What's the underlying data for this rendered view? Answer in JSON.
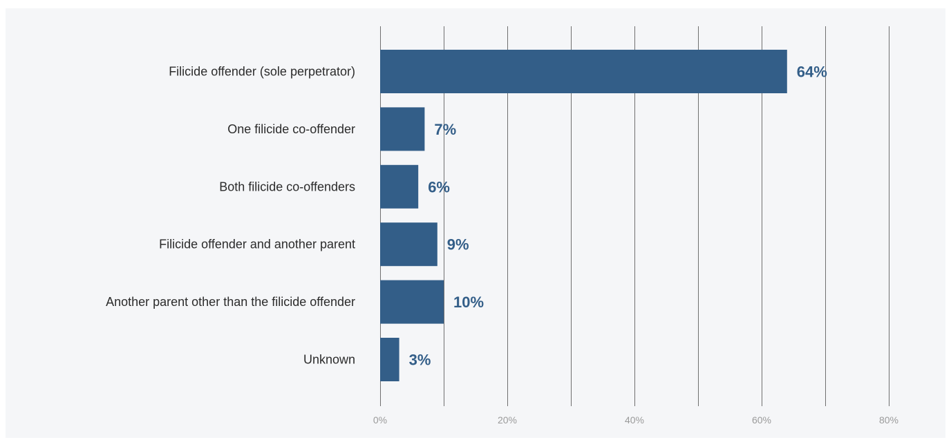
{
  "chart_data": {
    "type": "bar",
    "orientation": "horizontal",
    "categories": [
      "Filicide offender (sole perpetrator)",
      "One filicide co-offender",
      "Both filicide co-offenders",
      "Filicide offender and another parent",
      "Another parent other than the filicide offender",
      "Unknown"
    ],
    "values": [
      64,
      7,
      6,
      9,
      10,
      3
    ],
    "value_labels": [
      "64%",
      "7%",
      "6%",
      "9%",
      "10%",
      "3%"
    ],
    "xlim": [
      0,
      80
    ],
    "x_ticks": [
      0,
      20,
      40,
      60,
      80
    ],
    "x_tick_labels": [
      "0%",
      "20%",
      "40%",
      "60%",
      "80%"
    ],
    "gridlines_at": [
      0,
      10,
      20,
      30,
      40,
      50,
      60,
      70,
      80
    ],
    "grid": true,
    "title": "",
    "xlabel": "",
    "ylabel": "",
    "colors": {
      "bar": "#335e88",
      "value_label": "#335e88",
      "background": "#f5f6f8"
    }
  }
}
